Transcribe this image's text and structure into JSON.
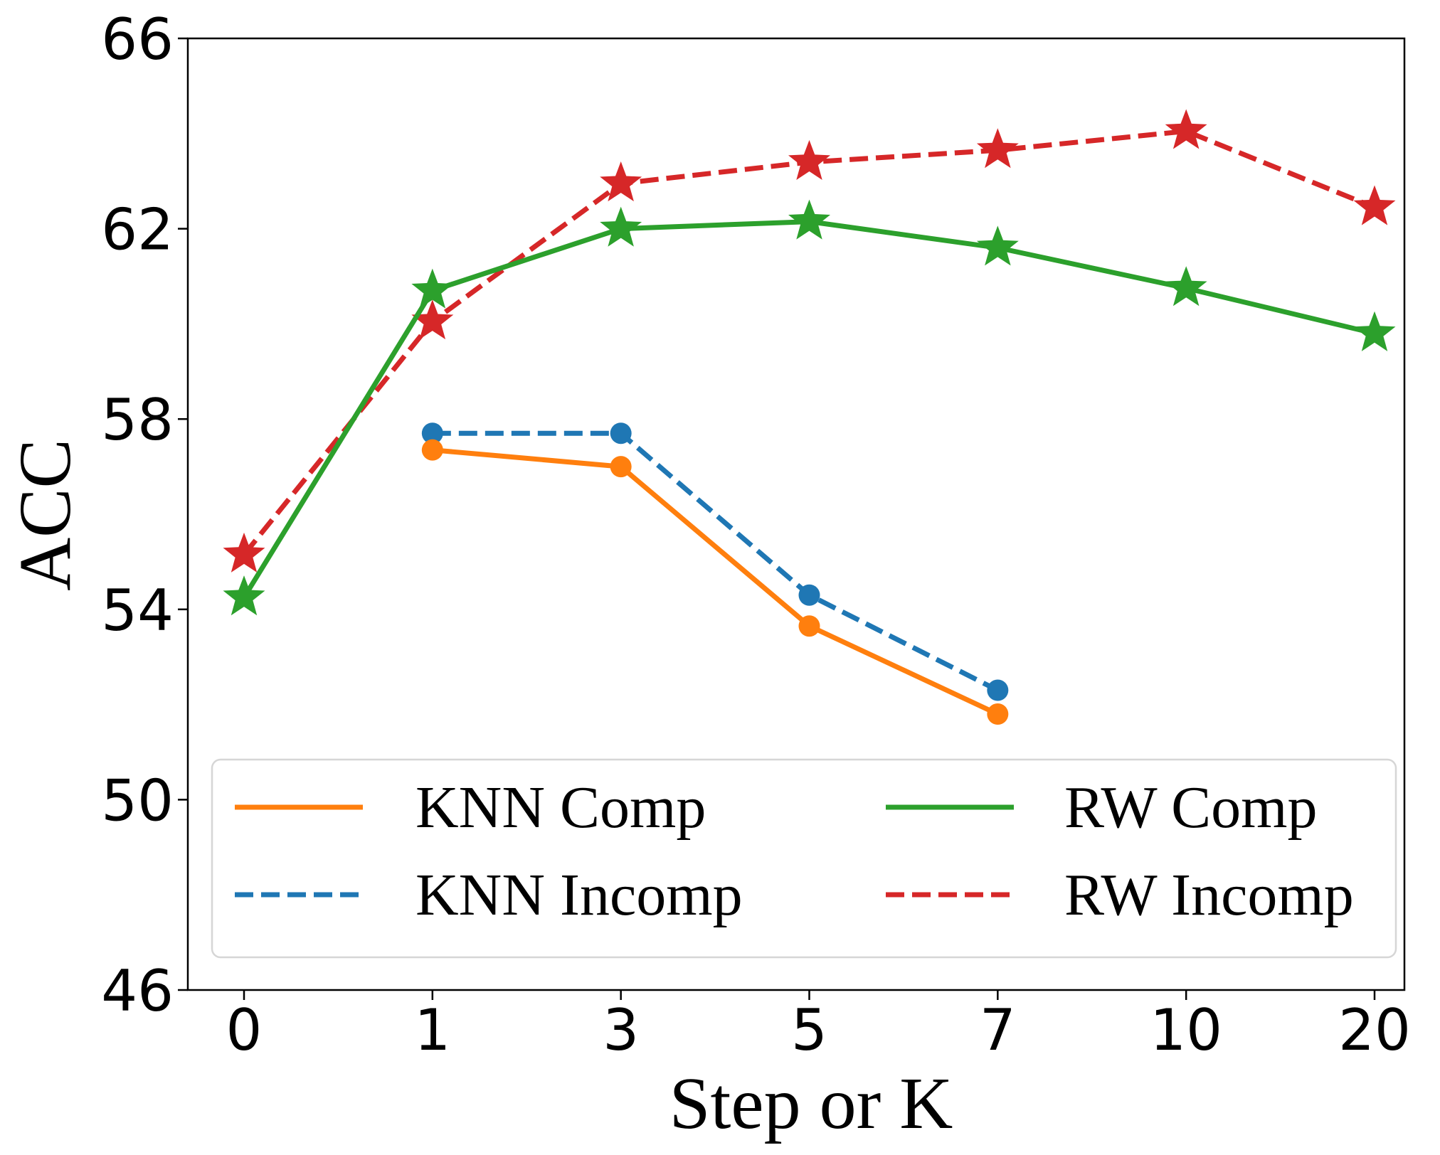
{
  "chart_data": {
    "type": "line",
    "title": "",
    "xlabel": "Step or K",
    "ylabel": "ACC",
    "categories": [
      "0",
      "1",
      "3",
      "5",
      "7",
      "10",
      "20"
    ],
    "ylim": [
      46,
      66
    ],
    "yticks": [
      46,
      50,
      54,
      58,
      62,
      66
    ],
    "grid": false,
    "legend_position": "bottom-center",
    "legend_columns": 2,
    "series": [
      {
        "name": "KNN Comp",
        "color": "#ff7f0e",
        "line_style": "solid",
        "marker": "circle",
        "x": [
          "1",
          "3",
          "5",
          "7"
        ],
        "values": [
          57.35,
          57.0,
          53.65,
          51.8
        ]
      },
      {
        "name": "KNN Incomp",
        "color": "#1f77b4",
        "line_style": "dashed",
        "marker": "circle",
        "x": [
          "1",
          "3",
          "5",
          "7"
        ],
        "values": [
          57.7,
          57.7,
          54.3,
          52.3
        ]
      },
      {
        "name": "RW Comp",
        "color": "#2ca02c",
        "line_style": "solid",
        "marker": "star",
        "x": [
          "0",
          "1",
          "3",
          "5",
          "7",
          "10",
          "20"
        ],
        "values": [
          54.25,
          60.7,
          62.0,
          62.15,
          61.6,
          60.75,
          59.8
        ]
      },
      {
        "name": "RW Incomp",
        "color": "#d62728",
        "line_style": "dashed",
        "marker": "star",
        "x": [
          "0",
          "1",
          "3",
          "5",
          "7",
          "10",
          "20"
        ],
        "values": [
          55.15,
          60.05,
          62.95,
          63.4,
          63.65,
          64.05,
          62.45
        ]
      }
    ]
  }
}
